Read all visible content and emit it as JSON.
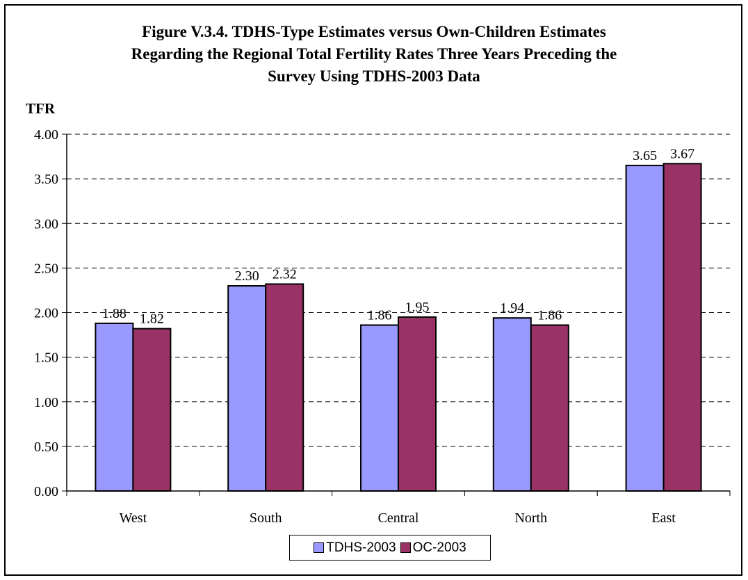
{
  "chart_data": {
    "type": "bar",
    "title": "Figure V.3.4.  TDHS-Type Estimates versus Own-Children Estimates Regarding the Regional Total Fertility Rates Three Years Preceding the Survey Using TDHS-2003 Data",
    "title_lines": [
      "Figure V.3.4.  TDHS-Type Estimates versus Own-Children Estimates",
      "Regarding the Regional Total Fertility Rates Three Years Preceding the",
      "Survey Using TDHS-2003 Data"
    ],
    "xlabel": "",
    "ylabel": "TFR",
    "ylim": [
      0,
      4
    ],
    "yticks": [
      "0.00",
      "0.50",
      "1.00",
      "1.50",
      "2.00",
      "2.50",
      "3.00",
      "3.50",
      "4.00"
    ],
    "grid": "dashed horizontal",
    "legend_position": "bottom",
    "categories": [
      "West",
      "South",
      "Central",
      "North",
      "East"
    ],
    "series": [
      {
        "name": "TDHS-2003",
        "color": "#9999ff",
        "values": [
          1.88,
          2.3,
          1.86,
          1.94,
          3.65
        ],
        "labels": [
          "1.88",
          "2.30",
          "1.86",
          "1.94",
          "3.65"
        ]
      },
      {
        "name": "OC-2003",
        "color": "#993366",
        "values": [
          1.82,
          2.32,
          1.95,
          1.86,
          3.67
        ],
        "labels": [
          "1.82",
          "2.32",
          "1.95",
          "1.86",
          "3.67"
        ]
      }
    ]
  }
}
